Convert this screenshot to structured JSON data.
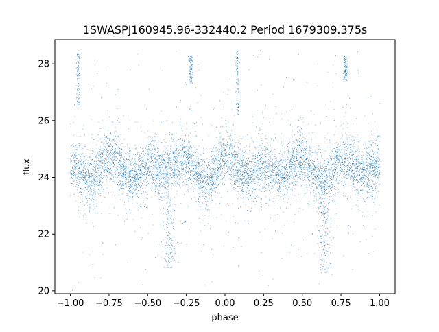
{
  "chart_data": {
    "type": "scatter",
    "title": "1SWASPJ160945.96-332440.2 Period 1679309.375s",
    "xlabel": "phase",
    "ylabel": "flux",
    "xlim": [
      -1.1,
      1.1
    ],
    "ylim": [
      19.9,
      28.85
    ],
    "xticks": [
      -1.0,
      -0.75,
      -0.5,
      -0.25,
      0.0,
      0.25,
      0.5,
      0.75,
      1.0
    ],
    "xtick_labels": [
      "−1.00",
      "−0.75",
      "−0.50",
      "−0.25",
      "0.00",
      "0.25",
      "0.50",
      "0.75",
      "1.00"
    ],
    "yticks": [
      20,
      22,
      24,
      26,
      28
    ],
    "ytick_labels": [
      "20",
      "22",
      "24",
      "26",
      "28"
    ],
    "grid": false,
    "legend": "none",
    "marker_color": "#1f77b4",
    "points_summary": {
      "x_range": [
        -1.0,
        1.0
      ],
      "typical_flux_range": [
        23.0,
        25.5
      ],
      "median_flux": 24.3,
      "outlier_flux_range": [
        20.2,
        28.5
      ],
      "approx_point_count": 12000
    },
    "bright_streaks": [
      {
        "phase": -0.95,
        "flux_range": [
          26.5,
          28.4
        ]
      },
      {
        "phase": -0.22,
        "flux_range": [
          27.3,
          28.3
        ]
      },
      {
        "phase": 0.08,
        "flux_range": [
          26.2,
          28.5
        ]
      },
      {
        "phase": 0.78,
        "flux_range": [
          27.4,
          28.3
        ]
      }
    ],
    "faint_streaks": [
      {
        "phase": -0.36,
        "flux_range": [
          20.8,
          23.0
        ]
      },
      {
        "phase": 0.64,
        "flux_range": [
          20.6,
          23.0
        ]
      }
    ]
  }
}
